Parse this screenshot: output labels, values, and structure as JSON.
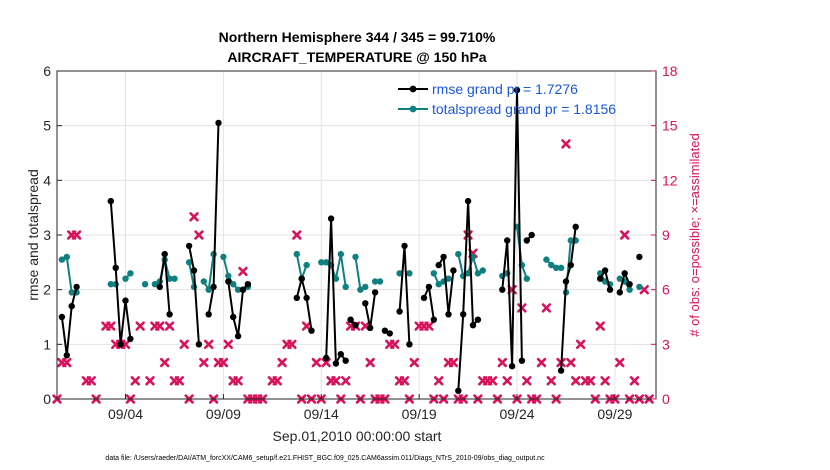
{
  "chart_data": {
    "type": "line",
    "title_line1": "Northern Hemisphere 344 / 345 = 99.710%",
    "title_line2": "AIRCRAFT_TEMPERATURE @ 150 hPa",
    "xlabel": "Sep.01,2010 00:00:00 start",
    "ylabel_left": "rmse and totalspread",
    "ylabel_right": "# of obs: o=possible; ×=assimilated",
    "footer": "data file: /Users/raeder/DAI/ATM_forcXX/CAM6_setup/f.e21.FHIST_BGC.f09_025.CAM6assim.011/Diags_NTrS_2010-09/obs_diag_output.nc",
    "x_ticks": [
      {
        "day": 3.5,
        "label": "09/04"
      },
      {
        "day": 8.5,
        "label": "09/09"
      },
      {
        "day": 13.5,
        "label": "09/14"
      },
      {
        "day": 18.5,
        "label": "09/19"
      },
      {
        "day": 23.5,
        "label": "09/24"
      },
      {
        "day": 28.5,
        "label": "09/29"
      }
    ],
    "xlim": [
      0,
      30.6
    ],
    "ylim_left": [
      0,
      6
    ],
    "left_ticks": [
      "0",
      "1",
      "2",
      "3",
      "4",
      "5",
      "6"
    ],
    "ylim_right": [
      0,
      18
    ],
    "right_ticks": [
      "0",
      "3",
      "6",
      "9",
      "12",
      "15",
      "18"
    ],
    "legend": [
      {
        "label": "rmse grand pr = 1.7276",
        "color": "#000000"
      },
      {
        "label": "totalspread grand pr = 1.8156",
        "color": "#0f8080"
      }
    ],
    "colors": {
      "rmse": "#000000",
      "spread": "#0f8080",
      "obs": "#d8125b",
      "legend_text": "#1a56e0",
      "right_axis": "#d8125b"
    },
    "rmse_segments": [
      [
        [
          0.25,
          1.5
        ],
        [
          0.5,
          0.8
        ],
        [
          0.75,
          1.7
        ],
        [
          1.0,
          2.05
        ]
      ],
      [
        [
          2.75,
          3.62
        ],
        [
          3.0,
          2.4
        ],
        [
          3.25,
          1.0
        ],
        [
          3.5,
          1.8
        ],
        [
          3.75,
          1.1
        ]
      ],
      [
        [
          5.25,
          2.05
        ],
        [
          5.5,
          2.65
        ],
        [
          5.75,
          1.55
        ]
      ],
      [
        [
          6.75,
          2.8
        ],
        [
          7.0,
          2.35
        ],
        [
          7.25,
          1.0
        ]
      ],
      [
        [
          7.75,
          1.55
        ],
        [
          8.0,
          2.05
        ],
        [
          8.25,
          5.05
        ]
      ],
      [
        [
          8.75,
          2.15
        ],
        [
          9.0,
          1.5
        ],
        [
          9.25,
          1.15
        ],
        [
          9.5,
          2.0
        ],
        [
          9.75,
          2.1
        ]
      ],
      [
        [
          12.25,
          1.85
        ],
        [
          12.5,
          2.2
        ],
        [
          12.75,
          1.85
        ],
        [
          13.0,
          1.25
        ]
      ],
      [
        [
          13.75,
          0.75
        ],
        [
          14.0,
          3.3
        ],
        [
          14.25,
          0.65
        ],
        [
          14.5,
          0.82
        ],
        [
          14.75,
          0.7
        ]
      ],
      [
        [
          15.0,
          1.45
        ],
        [
          15.25,
          1.35
        ]
      ],
      [
        [
          15.75,
          1.75
        ],
        [
          16.0,
          1.3
        ],
        [
          16.25,
          1.95
        ]
      ],
      [
        [
          16.75,
          1.25
        ],
        [
          17.0,
          1.2
        ]
      ],
      [
        [
          17.5,
          1.6
        ],
        [
          17.75,
          2.8
        ],
        [
          18.0,
          1.0
        ]
      ],
      [
        [
          18.75,
          1.85
        ],
        [
          19.0,
          2.05
        ],
        [
          19.25,
          1.45
        ]
      ],
      [
        [
          19.5,
          2.45
        ],
        [
          19.75,
          2.6
        ],
        [
          20.0,
          1.55
        ],
        [
          20.25,
          2.35
        ]
      ],
      [
        [
          20.5,
          0.15
        ],
        [
          20.75,
          1.55
        ],
        [
          21.0,
          3.62
        ],
        [
          21.25,
          1.35
        ],
        [
          21.5,
          1.45
        ]
      ],
      [
        [
          22.75,
          2.0
        ],
        [
          23.0,
          2.9
        ],
        [
          23.25,
          0.6
        ],
        [
          23.5,
          5.65
        ],
        [
          23.75,
          0.7
        ]
      ],
      [
        [
          24.0,
          2.9
        ],
        [
          24.25,
          3.0
        ]
      ],
      [
        [
          25.75,
          0.52
        ],
        [
          26.0,
          2.15
        ],
        [
          26.25,
          2.45
        ],
        [
          26.5,
          3.15
        ]
      ],
      [
        [
          27.75,
          2.2
        ],
        [
          28.0,
          2.35
        ],
        [
          28.25,
          2.0
        ]
      ],
      [
        [
          28.75,
          1.95
        ],
        [
          29.0,
          2.3
        ],
        [
          29.25,
          2.1
        ]
      ],
      [
        [
          29.75,
          2.6
        ]
      ]
    ],
    "spread_segments": [
      [
        [
          0.25,
          2.55
        ],
        [
          0.5,
          2.6
        ],
        [
          0.75,
          1.95
        ],
        [
          1.0,
          1.95
        ]
      ],
      [
        [
          2.75,
          2.1
        ],
        [
          3.0,
          2.1
        ]
      ],
      [
        [
          3.5,
          2.2
        ],
        [
          3.75,
          2.3
        ]
      ],
      [
        [
          4.5,
          2.1
        ]
      ],
      [
        [
          5.0,
          2.1
        ],
        [
          5.25,
          2.15
        ],
        [
          5.5,
          2.55
        ],
        [
          5.75,
          2.2
        ],
        [
          6.0,
          2.2
        ]
      ],
      [
        [
          6.75,
          2.5
        ],
        [
          7.0,
          2.05
        ]
      ],
      [
        [
          7.5,
          2.15
        ],
        [
          7.75,
          2.0
        ],
        [
          8.0,
          2.65
        ]
      ],
      [
        [
          8.5,
          2.6
        ],
        [
          8.75,
          2.25
        ],
        [
          9.0,
          2.1
        ],
        [
          9.25,
          2.0
        ],
        [
          9.5,
          2.0
        ],
        [
          9.75,
          2.05
        ]
      ],
      [
        [
          12.25,
          2.65
        ],
        [
          12.5,
          2.2
        ],
        [
          12.75,
          2.45
        ]
      ],
      [
        [
          13.5,
          2.5
        ],
        [
          13.75,
          2.5
        ],
        [
          14.0,
          2.45
        ],
        [
          14.25,
          2.2
        ],
        [
          14.5,
          2.65
        ],
        [
          14.75,
          2.05
        ]
      ],
      [
        [
          15.25,
          2.6
        ],
        [
          15.5,
          2.0
        ],
        [
          15.75,
          2.05
        ]
      ],
      [
        [
          16.25,
          2.15
        ],
        [
          16.5,
          2.15
        ]
      ],
      [
        [
          17.5,
          2.3
        ]
      ],
      [
        [
          18.0,
          2.3
        ]
      ],
      [
        [
          19.25,
          2.3
        ],
        [
          19.5,
          2.1
        ],
        [
          19.75,
          2.15
        ],
        [
          20.0,
          2.2
        ]
      ],
      [
        [
          20.5,
          2.65
        ],
        [
          20.75,
          2.25
        ],
        [
          21.0,
          2.3
        ],
        [
          21.25,
          2.6
        ],
        [
          21.5,
          2.3
        ],
        [
          21.75,
          2.35
        ]
      ],
      [
        [
          22.75,
          2.25
        ],
        [
          23.0,
          2.3
        ]
      ],
      [
        [
          23.5,
          3.15
        ],
        [
          23.75,
          2.45
        ],
        [
          24.0,
          2.2
        ]
      ],
      [
        [
          25.0,
          2.55
        ],
        [
          25.25,
          2.45
        ],
        [
          25.5,
          2.4
        ],
        [
          25.75,
          2.4
        ]
      ],
      [
        [
          26.0,
          1.95
        ],
        [
          26.25,
          2.9
        ],
        [
          26.5,
          2.9
        ]
      ],
      [
        [
          27.75,
          2.3
        ],
        [
          28.0,
          2.15
        ],
        [
          28.25,
          2.1
        ]
      ],
      [
        [
          28.75,
          2.2
        ],
        [
          29.0,
          2.15
        ],
        [
          29.25,
          2.0
        ]
      ],
      [
        [
          29.75,
          2.05
        ]
      ]
    ],
    "obs_counts": [
      [
        0.0,
        0
      ],
      [
        0.25,
        2
      ],
      [
        0.5,
        2
      ],
      [
        0.75,
        9
      ],
      [
        1.0,
        9
      ],
      [
        1.5,
        1
      ],
      [
        1.75,
        1
      ],
      [
        2.0,
        0
      ],
      [
        2.5,
        4
      ],
      [
        2.75,
        4
      ],
      [
        3.0,
        3
      ],
      [
        3.25,
        3
      ],
      [
        3.5,
        3
      ],
      [
        3.75,
        0
      ],
      [
        4.0,
        1
      ],
      [
        4.25,
        4
      ],
      [
        4.75,
        1
      ],
      [
        5.0,
        4
      ],
      [
        5.25,
        4
      ],
      [
        5.5,
        2
      ],
      [
        5.75,
        4
      ],
      [
        6.0,
        1
      ],
      [
        6.25,
        1
      ],
      [
        6.5,
        3
      ],
      [
        6.75,
        0
      ],
      [
        7.0,
        10
      ],
      [
        7.25,
        9
      ],
      [
        7.5,
        2
      ],
      [
        7.75,
        3
      ],
      [
        8.0,
        0
      ],
      [
        8.25,
        2
      ],
      [
        8.5,
        2
      ],
      [
        8.75,
        3
      ],
      [
        9.0,
        1
      ],
      [
        9.25,
        1
      ],
      [
        9.5,
        7
      ],
      [
        9.75,
        0
      ],
      [
        10.0,
        0
      ],
      [
        10.25,
        0
      ],
      [
        10.5,
        0
      ],
      [
        11.0,
        1
      ],
      [
        11.25,
        1
      ],
      [
        11.5,
        2
      ],
      [
        11.75,
        3
      ],
      [
        12.0,
        3
      ],
      [
        12.25,
        9
      ],
      [
        12.5,
        0
      ],
      [
        12.75,
        4
      ],
      [
        13.0,
        0
      ],
      [
        13.25,
        2
      ],
      [
        13.5,
        0
      ],
      [
        13.75,
        2
      ],
      [
        14.0,
        1
      ],
      [
        14.25,
        1
      ],
      [
        14.5,
        0
      ],
      [
        14.75,
        1
      ],
      [
        15.0,
        4
      ],
      [
        15.25,
        4
      ],
      [
        15.5,
        0
      ],
      [
        15.75,
        4
      ],
      [
        16.0,
        2
      ],
      [
        16.25,
        0
      ],
      [
        16.5,
        0
      ],
      [
        16.75,
        0
      ],
      [
        17.0,
        3
      ],
      [
        17.25,
        3
      ],
      [
        17.5,
        1
      ],
      [
        17.75,
        1
      ],
      [
        18.0,
        0
      ],
      [
        18.25,
        2
      ],
      [
        18.5,
        4
      ],
      [
        18.75,
        4
      ],
      [
        19.0,
        4
      ],
      [
        19.25,
        0
      ],
      [
        19.5,
        1
      ],
      [
        19.75,
        0
      ],
      [
        20.0,
        2
      ],
      [
        20.25,
        2
      ],
      [
        20.5,
        0
      ],
      [
        20.75,
        0
      ],
      [
        21.0,
        9
      ],
      [
        21.25,
        8
      ],
      [
        21.5,
        0
      ],
      [
        21.75,
        1
      ],
      [
        22.0,
        1
      ],
      [
        22.25,
        1
      ],
      [
        22.5,
        0
      ],
      [
        22.75,
        2
      ],
      [
        23.0,
        1
      ],
      [
        23.25,
        6
      ],
      [
        23.5,
        0
      ],
      [
        23.75,
        5
      ],
      [
        24.0,
        1
      ],
      [
        24.25,
        0
      ],
      [
        24.5,
        0
      ],
      [
        24.75,
        2
      ],
      [
        25.0,
        5
      ],
      [
        25.25,
        1
      ],
      [
        25.5,
        0
      ],
      [
        25.75,
        2
      ],
      [
        26.0,
        14
      ],
      [
        26.25,
        2
      ],
      [
        26.5,
        1
      ],
      [
        26.75,
        3
      ],
      [
        27.0,
        1
      ],
      [
        27.25,
        1
      ],
      [
        27.5,
        0
      ],
      [
        27.75,
        4
      ],
      [
        28.0,
        1
      ],
      [
        28.25,
        0
      ],
      [
        28.5,
        0
      ],
      [
        28.75,
        2
      ],
      [
        29.0,
        9
      ],
      [
        29.25,
        0
      ],
      [
        29.5,
        1
      ],
      [
        29.75,
        0
      ],
      [
        30.0,
        6
      ],
      [
        30.25,
        0
      ]
    ]
  }
}
